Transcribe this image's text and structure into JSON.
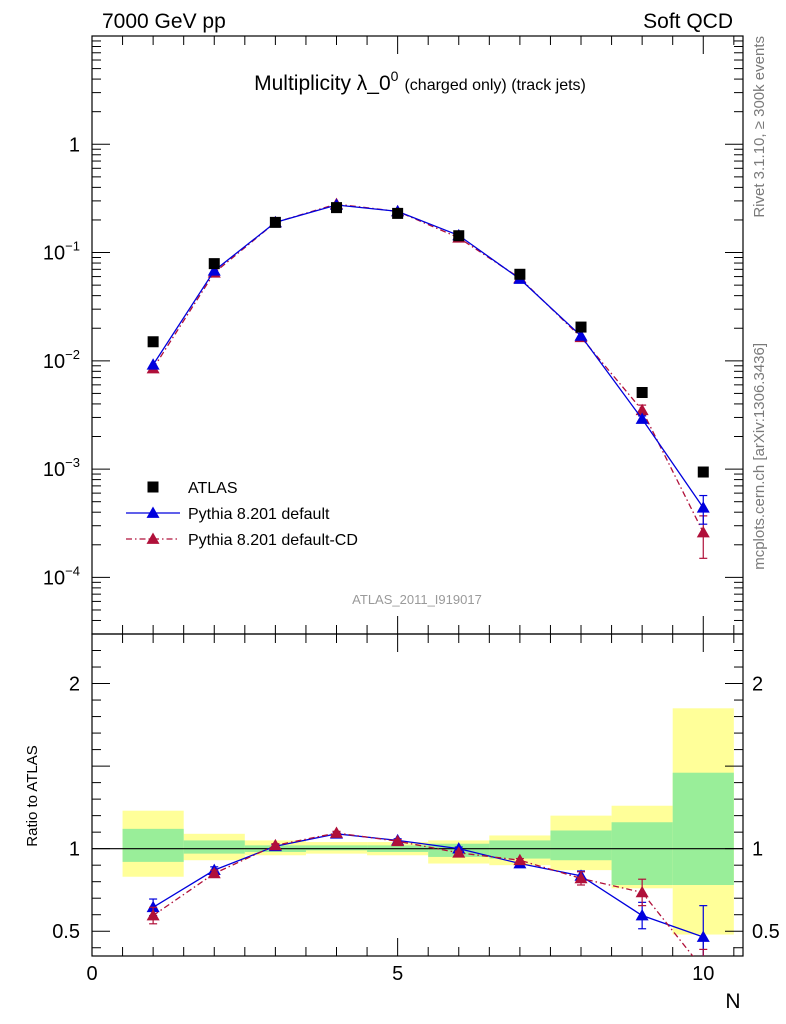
{
  "header": {
    "left": "7000 GeV pp",
    "right": "Soft QCD"
  },
  "side_labels": {
    "top": "Rivet 3.1.10, ≥ 300k events",
    "bottom": "mcplots.cern.ch [arXiv:1306.3436]"
  },
  "chart_data": [
    {
      "type": "scatter",
      "title_main": "Multiplicity λ_0",
      "title_sup": "0",
      "title_tail": "(charged only) (track jets)",
      "watermark": "ATLAS_2011_I919017",
      "xlim": [
        0,
        10.65
      ],
      "ylim": [
        3e-05,
        10
      ],
      "yscale": "log",
      "ytick_labels": [
        {
          "base": "10",
          "exp": "−4",
          "v": 0.0001
        },
        {
          "base": "10",
          "exp": "−3",
          "v": 0.001
        },
        {
          "base": "10",
          "exp": "−2",
          "v": 0.01
        },
        {
          "base": "10",
          "exp": "−1",
          "v": 0.1
        },
        {
          "base": "1",
          "exp": "",
          "v": 1
        }
      ],
      "legend": {
        "position": "lower-left",
        "entries": [
          "ATLAS",
          "Pythia 8.201 default",
          "Pythia 8.201 default-CD"
        ]
      },
      "series": [
        {
          "name": "ATLAS",
          "color": "#000000",
          "marker": "square",
          "x": [
            1,
            2,
            3,
            4,
            5,
            6,
            7,
            8,
            9,
            10
          ],
          "y": [
            0.015,
            0.079,
            0.19,
            0.26,
            0.23,
            0.143,
            0.063,
            0.0205,
            0.0051,
            0.00094
          ]
        },
        {
          "name": "Pythia 8.201 default",
          "color": "#0000dd",
          "marker": "triangle",
          "line": "solid",
          "x": [
            1,
            2,
            3,
            4,
            5,
            6,
            7,
            8,
            9,
            10
          ],
          "y": [
            0.0092,
            0.068,
            0.19,
            0.275,
            0.24,
            0.144,
            0.057,
            0.017,
            0.0029,
            0.00044
          ],
          "yerr": [
            0,
            0,
            0,
            0,
            0,
            0,
            0,
            0,
            0.0002,
            0.00013
          ]
        },
        {
          "name": "Pythia 8.201 default-CD",
          "color": "#b0103a",
          "marker": "triangle",
          "line": "dashdot",
          "x": [
            1,
            2,
            3,
            4,
            5,
            6,
            7,
            8,
            9,
            10
          ],
          "y": [
            0.0085,
            0.065,
            0.19,
            0.28,
            0.24,
            0.137,
            0.058,
            0.0165,
            0.0035,
            0.00026
          ],
          "yerr": [
            0,
            0,
            0,
            0,
            0,
            0,
            0,
            0,
            0.0004,
            0.00011
          ]
        }
      ]
    },
    {
      "type": "scatter",
      "ylabel": "Ratio to ATLAS",
      "xlabel": "N",
      "xlim": [
        0,
        10.65
      ],
      "ylim": [
        0.35,
        2.3
      ],
      "xtick_labels": [
        "0",
        "5",
        "10"
      ],
      "xtick_values": [
        0,
        5,
        10
      ],
      "ytick_labels": [
        "0.5",
        "1",
        "2"
      ],
      "ytick_values": [
        0.5,
        1,
        2
      ],
      "reference_line": 1,
      "bands": {
        "edges": [
          0.5,
          1.5,
          2.5,
          3.5,
          4.5,
          5.5,
          6.5,
          7.5,
          8.5,
          9.5,
          10.5
        ],
        "yellow": [
          [
            0.83,
            1.23
          ],
          [
            0.93,
            1.09
          ],
          [
            0.96,
            1.05
          ],
          [
            0.97,
            1.04
          ],
          [
            0.96,
            1.04
          ],
          [
            0.91,
            1.05
          ],
          [
            0.9,
            1.08
          ],
          [
            0.87,
            1.2
          ],
          [
            0.76,
            1.26
          ],
          [
            0.48,
            1.85
          ]
        ],
        "green": [
          [
            0.92,
            1.12
          ],
          [
            0.97,
            1.05
          ],
          [
            0.98,
            1.02
          ],
          [
            0.99,
            1.02
          ],
          [
            0.98,
            1.02
          ],
          [
            0.95,
            1.03
          ],
          [
            0.94,
            1.05
          ],
          [
            0.93,
            1.11
          ],
          [
            0.78,
            1.16
          ],
          [
            0.78,
            1.46
          ]
        ]
      },
      "series": [
        {
          "name": "Pythia 8.201 default",
          "color": "#0000dd",
          "marker": "triangle",
          "line": "solid",
          "x": [
            1,
            2,
            3,
            4,
            5,
            6,
            7,
            8,
            9,
            10
          ],
          "y": [
            0.645,
            0.87,
            1.015,
            1.09,
            1.05,
            1.0,
            0.91,
            0.835,
            0.595,
            0.465
          ],
          "yerr": [
            0.05,
            0.02,
            0.01,
            0.01,
            0.01,
            0.01,
            0.01,
            0.03,
            0.08,
            0.19
          ]
        },
        {
          "name": "Pythia 8.201 default-CD",
          "color": "#b0103a",
          "marker": "triangle",
          "line": "dashdot",
          "x": [
            1,
            2,
            3,
            4,
            5,
            6,
            7,
            8,
            9,
            10
          ],
          "y": [
            0.595,
            0.85,
            1.02,
            1.095,
            1.045,
            0.975,
            0.93,
            0.82,
            0.735,
            0.27
          ],
          "yerr": [
            0.05,
            0.02,
            0.01,
            0.01,
            0.01,
            0.01,
            0.01,
            0.04,
            0.08,
            0.12
          ]
        }
      ]
    }
  ]
}
